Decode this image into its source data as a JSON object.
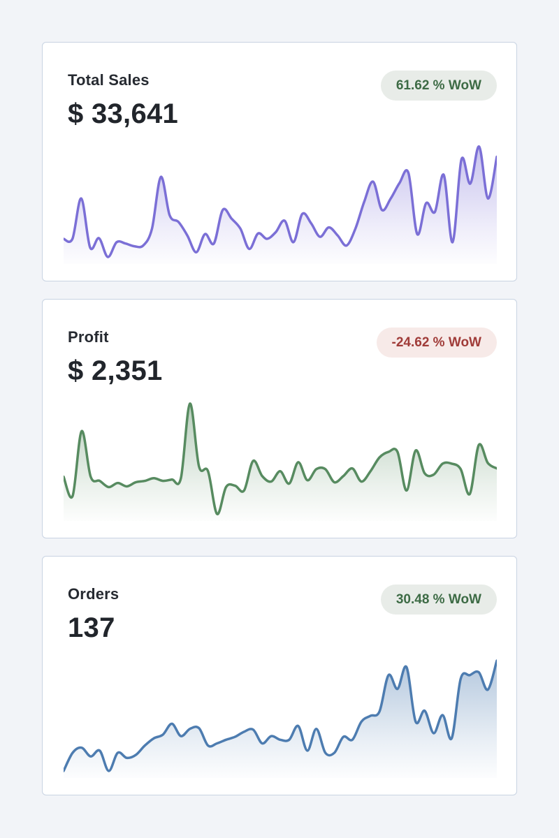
{
  "page": {
    "background": "#f2f4f8",
    "card_border": "#c8d3e2",
    "card_background": "#ffffff"
  },
  "cards": [
    {
      "title": "Total Sales",
      "value": "$ 33,641",
      "badge": {
        "label": "61.62 % WoW",
        "sentiment": "positive"
      }
    },
    {
      "title": "Profit",
      "value": "$ 2,351",
      "badge": {
        "label": "-24.62 % WoW",
        "sentiment": "negative"
      }
    },
    {
      "title": "Orders",
      "value": "137",
      "badge": {
        "label": "30.48 % WoW",
        "sentiment": "positive"
      }
    }
  ],
  "badge_colors": {
    "positive_text": "#3d6b45",
    "positive_bg": "#e8ece8",
    "negative_text": "#a03c39",
    "negative_bg": "#f7eae8"
  },
  "chart_data": [
    {
      "type": "area",
      "title": "Total Sales weekly sparkline",
      "line_color": "#7b6fd6",
      "x_axis": "hidden",
      "y_axis": "hidden",
      "grid": false,
      "legend": false,
      "units": "relative (no axis labels shown)",
      "values": [
        30,
        30,
        90,
        17,
        31,
        3,
        25,
        23,
        19,
        20,
        45,
        122,
        65,
        55,
        35,
        10,
        37,
        23,
        73,
        60,
        45,
        15,
        38,
        30,
        40,
        57,
        25,
        67,
        53,
        33,
        47,
        35,
        20,
        45,
        85,
        115,
        73,
        90,
        113,
        128,
        37,
        83,
        70,
        125,
        25,
        148,
        112,
        167,
        90,
        152
      ]
    },
    {
      "type": "area",
      "title": "Profit weekly sparkline (crosses zero baseline)",
      "line_color": "#578b60",
      "x_axis": "hidden",
      "y_axis": "hidden",
      "grid": false,
      "legend": false,
      "units": "relative (no axis labels shown)",
      "values": [
        18,
        -10,
        84,
        18,
        12,
        3,
        9,
        4,
        10,
        12,
        16,
        12,
        14,
        16,
        124,
        33,
        26,
        -36,
        3,
        5,
        -2,
        41,
        19,
        11,
        26,
        8,
        39,
        13,
        29,
        29,
        10,
        19,
        30,
        11,
        26,
        46,
        54,
        54,
        -2,
        56,
        23,
        21,
        37,
        37,
        29,
        -7,
        64,
        38,
        30
      ]
    },
    {
      "type": "area",
      "title": "Orders weekly sparkline",
      "line_color": "#4d7cb0",
      "x_axis": "hidden",
      "y_axis": "hidden",
      "grid": false,
      "legend": false,
      "units": "relative (no axis labels shown)",
      "values": [
        10,
        35,
        42,
        30,
        38,
        10,
        35,
        28,
        32,
        45,
        55,
        60,
        75,
        58,
        68,
        69,
        45,
        48,
        53,
        57,
        64,
        67,
        48,
        58,
        53,
        53,
        72,
        38,
        68,
        35,
        35,
        57,
        53,
        78,
        86,
        92,
        142,
        123,
        153,
        78,
        93,
        62,
        87,
        55,
        137,
        142,
        146,
        122,
        162
      ]
    }
  ]
}
